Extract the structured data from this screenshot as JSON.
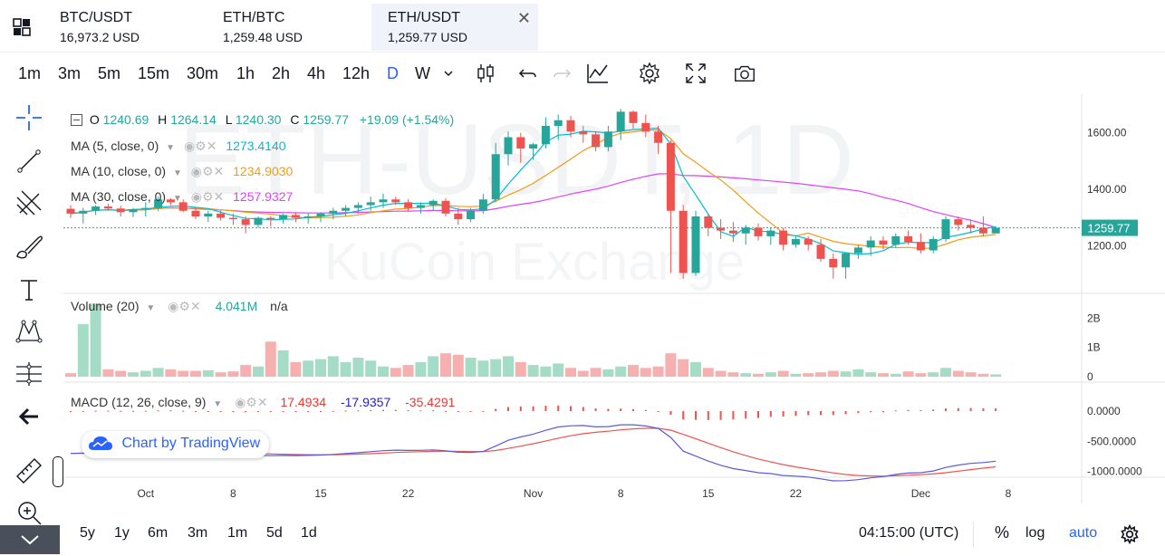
{
  "tabs": [
    {
      "symbol": "BTC/USDT",
      "price": "16,973.2 USD",
      "active": false
    },
    {
      "symbol": "ETH/BTC",
      "price": "1,259.48 USD",
      "active": false
    },
    {
      "symbol": "ETH/USDT",
      "price": "1,259.77 USD",
      "active": true
    }
  ],
  "toolbar": {
    "timeframes": [
      "1m",
      "3m",
      "5m",
      "15m",
      "30m",
      "1h",
      "2h",
      "4h",
      "12h",
      "D",
      "W"
    ],
    "active_timeframe": "D"
  },
  "watermark": {
    "symbol": "ETH-USDT, 1D",
    "exchange": "KuCoin Exchange"
  },
  "ohlc": {
    "o_label": "O",
    "o": "1240.69",
    "h_label": "H",
    "h": "1264.14",
    "l_label": "L",
    "l": "1240.30",
    "c_label": "C",
    "c": "1259.77",
    "change": "+19.09 (+1.54%)"
  },
  "ma": [
    {
      "label": "MA (5, close, 0)",
      "value": "1273.4140",
      "color": "#00bcd4"
    },
    {
      "label": "MA (10, close, 0)",
      "value": "1234.9030",
      "color": "#f39c12"
    },
    {
      "label": "MA (30, close, 0)",
      "value": "1257.9327",
      "color": "#e040fb"
    }
  ],
  "volume": {
    "label": "Volume (20)",
    "value": "4.041M",
    "extra": "n/a"
  },
  "macd": {
    "label": "MACD (12, 26, close, 9)",
    "hist": "17.4934",
    "macd": "-17.9357",
    "signal": "-35.4291"
  },
  "branding": "Chart by TradingView",
  "price_axis": [
    "1600.00",
    "1400.00",
    "1200.00"
  ],
  "last_price": "1259.77",
  "volume_axis": [
    "2B",
    "1B",
    "0"
  ],
  "macd_axis": [
    "0.0000",
    "-500.0000",
    "-1000.0000"
  ],
  "time_axis": [
    "Oct",
    "8",
    "15",
    "22",
    "Nov",
    "8",
    "15",
    "22",
    "Dec",
    "8"
  ],
  "bottom": {
    "ranges": [
      "5y",
      "1y",
      "6m",
      "3m",
      "1m",
      "5d",
      "1d"
    ],
    "clock": "04:15:00 (UTC)",
    "percent": "%",
    "log": "log",
    "auto": "auto"
  },
  "colors": {
    "up": "#26a69a",
    "down": "#ef5350",
    "accent": "#2962ff"
  },
  "chart_data": {
    "type": "candlestick",
    "start_date": "2022-09-25",
    "candles": [
      [
        1327,
        1340,
        1295,
        1310
      ],
      [
        1310,
        1330,
        1275,
        1320
      ],
      [
        1320,
        1340,
        1305,
        1335
      ],
      [
        1335,
        1345,
        1320,
        1328
      ],
      [
        1328,
        1338,
        1300,
        1315
      ],
      [
        1315,
        1330,
        1298,
        1325
      ],
      [
        1325,
        1350,
        1300,
        1330
      ],
      [
        1330,
        1370,
        1320,
        1360
      ],
      [
        1360,
        1365,
        1340,
        1350
      ],
      [
        1350,
        1360,
        1315,
        1320
      ],
      [
        1320,
        1330,
        1290,
        1300
      ],
      [
        1300,
        1320,
        1280,
        1310
      ],
      [
        1310,
        1320,
        1285,
        1295
      ],
      [
        1295,
        1310,
        1270,
        1290
      ],
      [
        1290,
        1300,
        1240,
        1270
      ],
      [
        1270,
        1300,
        1260,
        1295
      ],
      [
        1295,
        1300,
        1265,
        1290
      ],
      [
        1290,
        1310,
        1275,
        1305
      ],
      [
        1305,
        1315,
        1280,
        1295
      ],
      [
        1295,
        1310,
        1275,
        1300
      ],
      [
        1300,
        1315,
        1280,
        1310
      ],
      [
        1310,
        1330,
        1290,
        1320
      ],
      [
        1320,
        1340,
        1300,
        1330
      ],
      [
        1330,
        1350,
        1310,
        1340
      ],
      [
        1340,
        1370,
        1320,
        1350
      ],
      [
        1350,
        1380,
        1330,
        1360
      ],
      [
        1360,
        1370,
        1340,
        1350
      ],
      [
        1350,
        1360,
        1320,
        1330
      ],
      [
        1330,
        1350,
        1310,
        1340
      ],
      [
        1340,
        1360,
        1320,
        1355
      ],
      [
        1355,
        1365,
        1300,
        1310
      ],
      [
        1310,
        1330,
        1270,
        1290
      ],
      [
        1290,
        1330,
        1280,
        1320
      ],
      [
        1320,
        1380,
        1310,
        1360
      ],
      [
        1360,
        1560,
        1350,
        1520
      ],
      [
        1520,
        1600,
        1480,
        1580
      ],
      [
        1580,
        1595,
        1490,
        1540
      ],
      [
        1540,
        1560,
        1500,
        1555
      ],
      [
        1555,
        1650,
        1540,
        1620
      ],
      [
        1620,
        1660,
        1570,
        1640
      ],
      [
        1640,
        1655,
        1580,
        1600
      ],
      [
        1600,
        1620,
        1560,
        1590
      ],
      [
        1590,
        1600,
        1530,
        1545
      ],
      [
        1545,
        1620,
        1530,
        1600
      ],
      [
        1600,
        1680,
        1570,
        1670
      ],
      [
        1670,
        1675,
        1610,
        1630
      ],
      [
        1630,
        1660,
        1580,
        1600
      ],
      [
        1600,
        1620,
        1520,
        1560
      ],
      [
        1560,
        1570,
        1100,
        1320
      ],
      [
        1320,
        1340,
        1080,
        1100
      ],
      [
        1100,
        1320,
        1090,
        1300
      ],
      [
        1300,
        1310,
        1230,
        1260
      ],
      [
        1260,
        1290,
        1220,
        1250
      ],
      [
        1250,
        1280,
        1210,
        1240
      ],
      [
        1240,
        1270,
        1200,
        1260
      ],
      [
        1260,
        1275,
        1215,
        1230
      ],
      [
        1230,
        1260,
        1200,
        1250
      ],
      [
        1250,
        1260,
        1180,
        1200
      ],
      [
        1200,
        1230,
        1190,
        1220
      ],
      [
        1220,
        1230,
        1180,
        1200
      ],
      [
        1200,
        1220,
        1140,
        1150
      ],
      [
        1150,
        1170,
        1080,
        1120
      ],
      [
        1120,
        1170,
        1080,
        1170
      ],
      [
        1170,
        1200,
        1150,
        1190
      ],
      [
        1190,
        1230,
        1160,
        1215
      ],
      [
        1215,
        1230,
        1185,
        1200
      ],
      [
        1200,
        1240,
        1190,
        1230
      ],
      [
        1230,
        1250,
        1200,
        1210
      ],
      [
        1210,
        1240,
        1170,
        1180
      ],
      [
        1180,
        1230,
        1170,
        1220
      ],
      [
        1220,
        1300,
        1210,
        1290
      ],
      [
        1290,
        1300,
        1250,
        1270
      ],
      [
        1270,
        1290,
        1240,
        1260
      ],
      [
        1260,
        1300,
        1230,
        1240
      ],
      [
        1240,
        1264,
        1240,
        1260
      ]
    ],
    "volume": [
      0.12,
      1.8,
      2.5,
      0.25,
      0.2,
      0.15,
      0.2,
      0.3,
      0.25,
      0.2,
      0.2,
      0.22,
      0.15,
      0.18,
      0.4,
      0.35,
      1.2,
      0.9,
      0.5,
      0.55,
      0.6,
      0.7,
      0.5,
      0.65,
      0.55,
      0.35,
      0.3,
      0.4,
      0.5,
      0.7,
      0.8,
      0.75,
      0.65,
      0.55,
      0.6,
      0.7,
      0.5,
      0.4,
      0.35,
      0.45,
      0.3,
      0.2,
      0.3,
      0.25,
      0.35,
      0.4,
      0.3,
      0.35,
      0.8,
      0.6,
      0.5,
      0.3,
      0.2,
      0.15,
      0.12,
      0.1,
      0.15,
      0.2,
      0.1,
      0.12,
      0.15,
      0.2,
      0.18,
      0.25,
      0.15,
      0.12,
      0.1,
      0.18,
      0.12,
      0.15,
      0.3,
      0.2,
      0.15,
      0.1,
      0.08
    ],
    "ylim": [
      1060,
      1700
    ],
    "volume_ylim": [
      0,
      2.6
    ],
    "macd_ylim": [
      -1050,
      300
    ]
  }
}
